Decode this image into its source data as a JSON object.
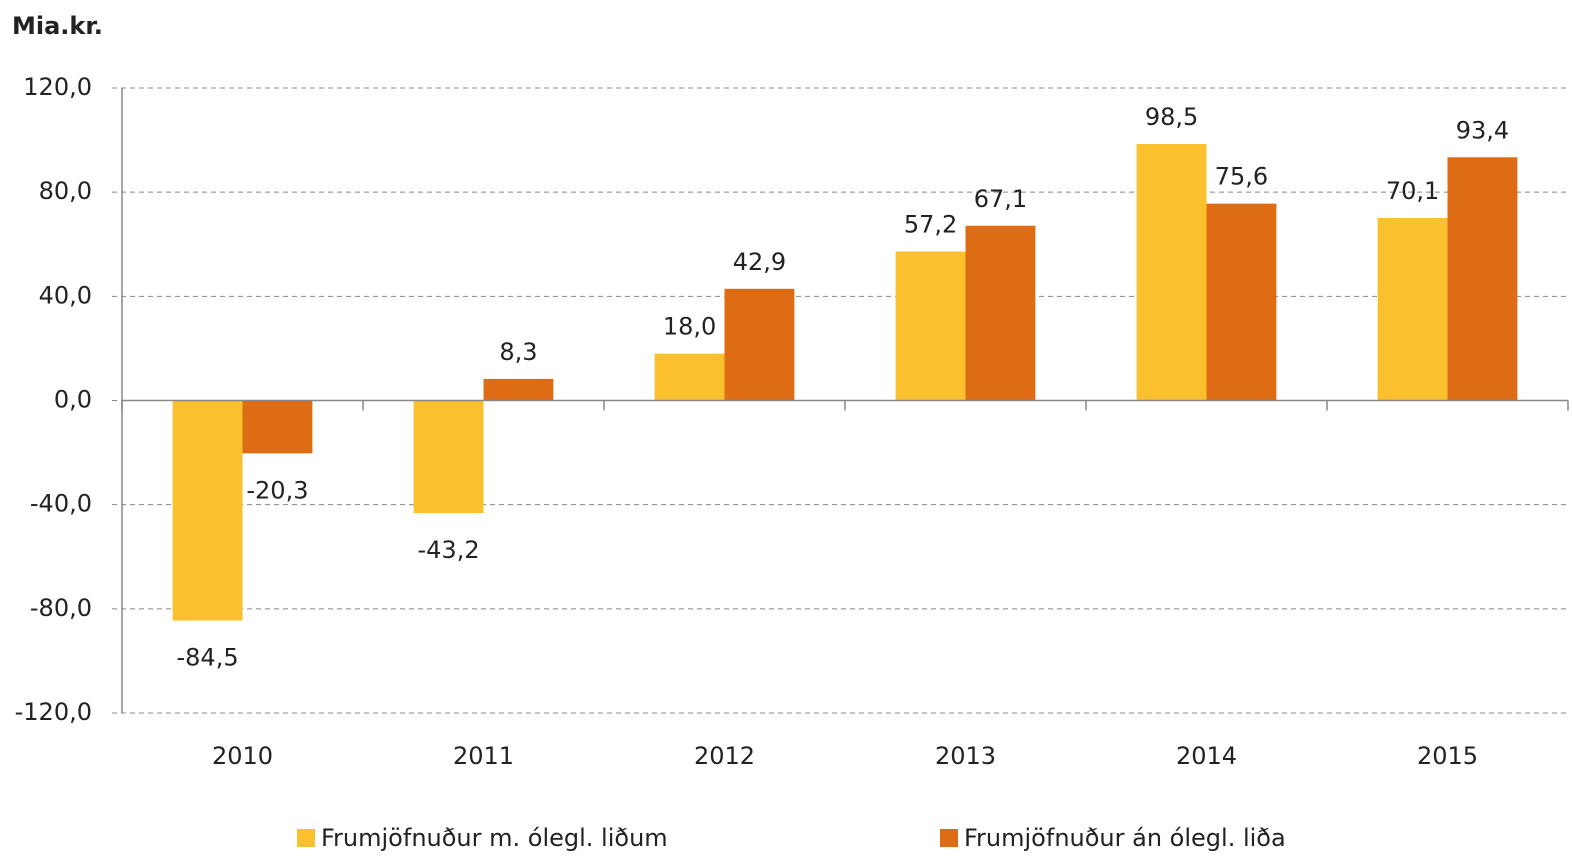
{
  "chart_data": {
    "type": "bar",
    "y_axis_label": "Mia.kr.",
    "categories": [
      "2010",
      "2011",
      "2012",
      "2013",
      "2014",
      "2015"
    ],
    "series": [
      {
        "name": "Frumjöfnuður m. ólegl. liðum",
        "color": "#fbc02d",
        "values": [
          -84.5,
          -43.2,
          18.0,
          57.2,
          98.5,
          70.1
        ],
        "value_labels": [
          "-84,5",
          "-43,2",
          "18,0",
          "57,2",
          "98,5",
          "70,1"
        ]
      },
      {
        "name": "Frumjöfnuður án ólegl. liða",
        "color": "#dd6c14",
        "values": [
          -20.3,
          8.3,
          42.9,
          67.1,
          75.6,
          93.4
        ],
        "value_labels": [
          "-20,3",
          "8,3",
          "42,9",
          "67,1",
          "75,6",
          "93,4"
        ]
      }
    ],
    "ylim": [
      -120,
      120
    ],
    "yticks": [
      {
        "value": -120,
        "label": "-120,0"
      },
      {
        "value": -80,
        "label": "-80,0"
      },
      {
        "value": -40,
        "label": "-40,0"
      },
      {
        "value": 0,
        "label": "0,0"
      },
      {
        "value": 40,
        "label": "40,0"
      },
      {
        "value": 80,
        "label": "80,0"
      },
      {
        "value": 120,
        "label": "120,0"
      }
    ],
    "grid": true,
    "legend": "bottom"
  }
}
